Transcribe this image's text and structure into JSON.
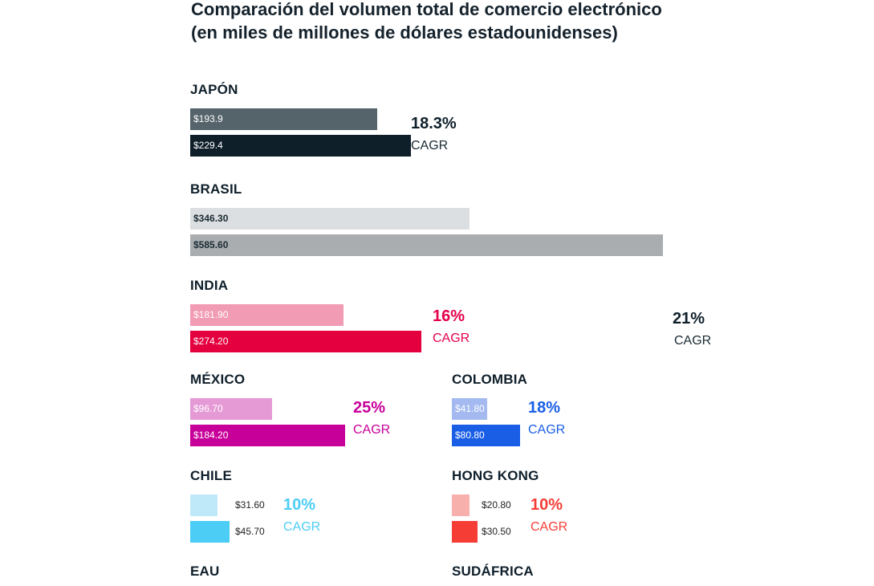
{
  "title_line1": "Comparación del volumen total de comercio electrónico",
  "title_line2": "(en miles de millones de dólares estadounidenses)",
  "chart_data": {
    "type": "bar",
    "title": "Comparación del volumen total de comercio electrónico (en miles de millones de dólares estadounidenses)",
    "groups": [
      {
        "name": "JAPÓN",
        "values": [
          193.9,
          229.4
        ],
        "labels": [
          "$193.9",
          "$229.4"
        ],
        "cagr": "18.3%",
        "cagr_label": "CAGR",
        "colors": [
          "#55636b",
          "#0f1f2a"
        ],
        "accent": "#0f1f2a",
        "value_text_color": "#ffffff"
      },
      {
        "name": "BRASIL",
        "values": [
          346.3,
          585.6
        ],
        "labels": [
          "$346.30",
          "$585.60"
        ],
        "cagr": "21%",
        "cagr_label": "CAGR",
        "colors": [
          "#dcdfe1",
          "#a9adb0"
        ],
        "accent": "#0f1f2a",
        "value_text_color": "#1a2a33"
      },
      {
        "name": "INDIA",
        "values": [
          181.9,
          274.2
        ],
        "labels": [
          "$181.90",
          "$274.20"
        ],
        "cagr": "16%",
        "cagr_label": "CAGR",
        "colors": [
          "#f19bb4",
          "#e4003f"
        ],
        "accent": "#e4004a",
        "value_text_color": "#ffffff"
      },
      {
        "name": "MÉXICO",
        "values": [
          96.7,
          184.2
        ],
        "labels": [
          "$96.70",
          "$184.20"
        ],
        "cagr": "25%",
        "cagr_label": "CAGR",
        "colors": [
          "#e59ad6",
          "#c8009a"
        ],
        "accent": "#c8009a",
        "value_text_color": "#ffffff"
      },
      {
        "name": "COLOMBIA",
        "values": [
          41.8,
          80.8
        ],
        "labels": [
          "$41.80",
          "$80.80"
        ],
        "cagr": "18%",
        "cagr_label": "CAGR",
        "colors": [
          "#a3b9f0",
          "#1a5ee6"
        ],
        "accent": "#1a5ee6",
        "value_text_color": "#ffffff"
      },
      {
        "name": "CHILE",
        "values": [
          31.6,
          45.7
        ],
        "labels": [
          "$31.60",
          "$45.70"
        ],
        "cagr": "10%",
        "cagr_label": "CAGR",
        "colors": [
          "#bfe8f8",
          "#4ccdf5"
        ],
        "accent": "#4ccdf5",
        "value_text_color": "#222222"
      },
      {
        "name": "HONG KONG",
        "values": [
          20.8,
          30.5
        ],
        "labels": [
          "$20.80",
          "$30.50"
        ],
        "cagr": "10%",
        "cagr_label": "CAGR",
        "colors": [
          "#f7b0ab",
          "#f53d36"
        ],
        "accent": "#f53d36",
        "value_text_color": "#222222"
      },
      {
        "name": "EAU",
        "values": [],
        "labels": [],
        "cagr": "",
        "cagr_label": "",
        "colors": [],
        "accent": "#0f1f2a"
      },
      {
        "name": "SUDÁFRICA",
        "values": [],
        "labels": [],
        "cagr": "",
        "cagr_label": "",
        "colors": [],
        "accent": "#0f1f2a"
      }
    ]
  }
}
